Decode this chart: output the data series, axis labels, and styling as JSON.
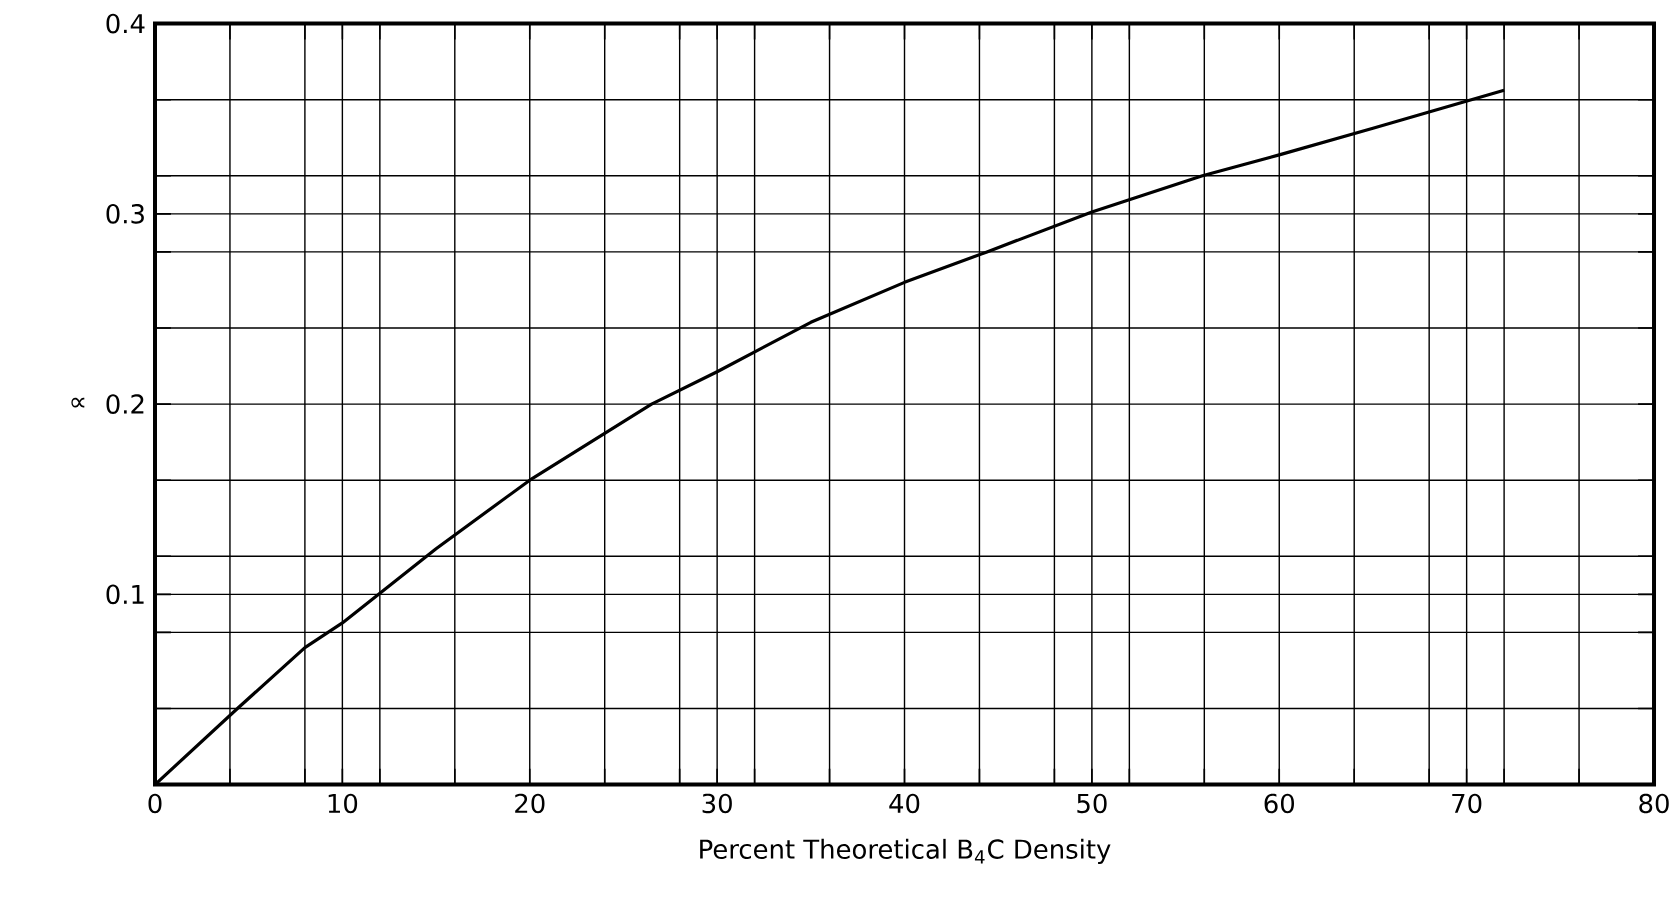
{
  "chart_data": {
    "type": "line",
    "xlabel": "Percent Theoretical B$_{4}$C Density",
    "ylabel": "∝",
    "x": [
      0,
      4.4,
      8,
      10,
      15,
      20,
      26.5,
      30,
      35,
      40,
      44.4,
      50,
      55.9,
      60,
      65,
      72
    ],
    "series": [
      {
        "color": "#000000",
        "values": [
          0,
          0.04,
          0.072,
          0.085,
          0.124,
          0.16,
          0.2,
          0.217,
          0.243,
          0.264,
          0.28,
          0.301,
          0.32,
          0.331,
          0.345,
          0.365
        ]
      }
    ],
    "xlim": [
      0,
      80
    ],
    "ylim": [
      0,
      0.4
    ],
    "xticks": [
      0,
      {
        "value": 4,
        "label": null
      },
      {
        "value": 8,
        "label": null
      },
      10,
      {
        "value": 12,
        "label": null
      },
      {
        "value": 16,
        "label": null
      },
      20,
      {
        "value": 24,
        "label": null
      },
      {
        "value": 28,
        "label": null
      },
      30,
      {
        "value": 32,
        "label": null
      },
      {
        "value": 36,
        "label": null
      },
      40,
      {
        "value": 44,
        "label": null
      },
      {
        "value": 48,
        "label": null
      },
      50,
      {
        "value": 52,
        "label": null
      },
      {
        "value": 56,
        "label": null
      },
      60,
      {
        "value": 64,
        "label": null
      },
      {
        "value": 68,
        "label": null
      },
      70,
      {
        "value": 72,
        "label": null
      },
      {
        "value": 76,
        "label": null
      },
      80
    ],
    "yticks": [
      {
        "value": 0.04,
        "label": null
      },
      {
        "value": 0.08,
        "label": null
      },
      0.1,
      {
        "value": 0.12,
        "label": null
      },
      {
        "value": 0.16,
        "label": null
      },
      0.2,
      {
        "value": 0.24,
        "label": null
      },
      {
        "value": 0.28,
        "label": null
      },
      0.3,
      {
        "value": 0.32,
        "label": null
      },
      {
        "value": 0.36,
        "label": null
      },
      0.4
    ],
    "grid": true,
    "marker": "none",
    "line_style": "solid"
  }
}
